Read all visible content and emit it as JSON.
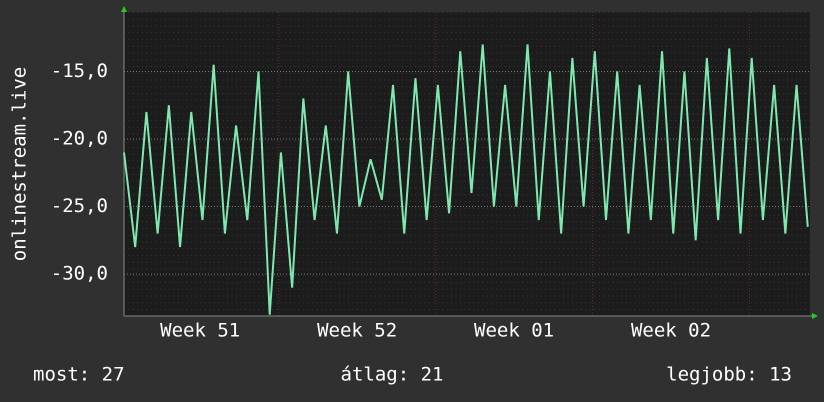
{
  "chart_data": {
    "type": "line",
    "y_label": "onlinestream.live",
    "x": [
      0,
      0.5,
      1,
      1.5,
      2,
      2.5,
      3,
      3.5,
      4,
      4.5,
      5,
      5.5,
      6,
      6.5,
      7,
      7.5,
      8,
      8.5,
      9,
      9.5,
      10,
      10.5,
      11,
      11.5,
      12,
      12.5,
      13,
      13.5,
      14,
      14.5,
      15,
      15.5,
      16,
      16.5,
      17,
      17.5,
      18,
      18.5,
      19,
      19.5,
      20,
      20.5,
      21,
      21.5,
      22,
      22.5,
      23,
      23.5,
      24,
      24.5,
      25,
      25.5,
      26,
      26.5,
      27,
      27.5,
      28,
      28.5,
      29,
      29.5,
      30,
      30.5
    ],
    "series": [
      {
        "color": "#7fe8b0",
        "values": [
          -21,
          -28,
          -18,
          -27,
          -17.5,
          -28,
          -18,
          -26,
          -14.5,
          -27,
          -19,
          -26,
          -15,
          -33,
          -21,
          -31,
          -17,
          -26,
          -19,
          -27,
          -15,
          -25,
          -21.5,
          -24.5,
          -16,
          -27,
          -15.5,
          -26,
          -16,
          -25.5,
          -13.5,
          -24,
          -13,
          -25,
          -16,
          -25,
          -13,
          -26,
          -15,
          -27,
          -14,
          -25,
          -13.5,
          -26,
          -15,
          -27,
          -16,
          -26,
          -13.5,
          -27,
          -15,
          -27.5,
          -14,
          -26,
          -13.3,
          -27,
          -14,
          -26,
          -16,
          -27,
          -16,
          -26.5
        ]
      }
    ],
    "xlim": [
      0,
      30.6
    ],
    "xticks": [
      {
        "value": 3.4,
        "label": "Week 51"
      },
      {
        "value": 10.4,
        "label": "Week 52"
      },
      {
        "value": 17.4,
        "label": "Week 01"
      },
      {
        "value": 24.4,
        "label": "Week 02"
      }
    ],
    "week_lines": [
      6.9,
      13.9,
      20.9,
      27.9
    ],
    "ylim": [
      -33.1,
      -10.6
    ],
    "yticks": [
      {
        "value": -15,
        "label": "-15,0"
      },
      {
        "value": -20,
        "label": "-20,0"
      },
      {
        "value": -25,
        "label": "-25,0"
      },
      {
        "value": -30,
        "label": "-30,0"
      }
    ],
    "grid": true,
    "summary": [
      "most: 27",
      "átlag: 21",
      "legjobb: 13"
    ]
  }
}
